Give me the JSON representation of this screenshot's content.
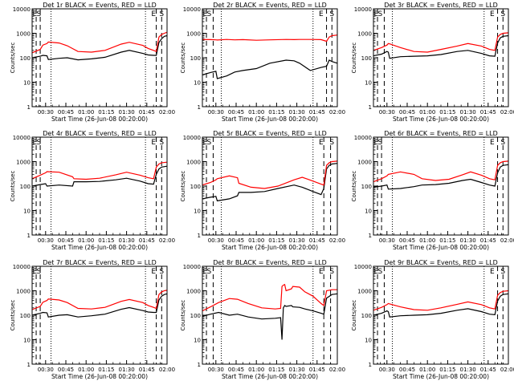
{
  "page": {
    "background": "#ffffff",
    "axis_color": "#000000"
  },
  "common": {
    "ylabel": "Counts/sec",
    "xlabel": "Start Time (26-Jun-08 00:20:00)",
    "xtick_labels": [
      "00:30",
      "00:45",
      "01:00",
      "01:15",
      "01:30",
      "01:45",
      "02:00"
    ],
    "ytick_labels": [
      "1",
      "10",
      "100",
      "1000",
      "10000"
    ],
    "events_color": "#000000",
    "lld_color": "#ff0000"
  },
  "chart_data": [
    {
      "type": "line",
      "title": "Det 1r BLACK = Events, RED = LLD",
      "xlabel": "Start Time (26-Jun-08 00:20:00)",
      "ylabel": "Counts/sec",
      "x_unit": "minutes after 00:20:00",
      "xlim": [
        0,
        100
      ],
      "ylim": [
        1,
        10000
      ],
      "yscale": "log",
      "grid": false,
      "x": [
        0,
        6,
        8,
        11,
        12,
        20,
        26,
        34,
        44,
        54,
        66,
        72,
        82,
        86,
        90,
        92,
        94,
        96,
        98,
        100
      ],
      "series": [
        {
          "label": "Events",
          "color": "#000000",
          "values": [
            100,
            115,
            125,
            120,
            85,
            95,
            100,
            82,
            90,
            105,
            170,
            200,
            150,
            130,
            125,
            125,
            420,
            600,
            750,
            800
          ]
        },
        {
          "label": "LLD",
          "color": "#ff0000",
          "values": [
            160,
            220,
            330,
            380,
            440,
            400,
            310,
            180,
            170,
            200,
            360,
            430,
            320,
            240,
            200,
            180,
            700,
            900,
            1000,
            1100
          ]
        }
      ],
      "dashed_lines_x": [
        3,
        6,
        92,
        96
      ],
      "dotted_lines_x": [
        14,
        84
      ],
      "corner_labels": [
        {
          "text": "E",
          "x": 2
        },
        {
          "text": "S",
          "x": 5
        },
        {
          "text": "E",
          "x": 90
        },
        {
          "text": "S",
          "x": 96
        }
      ]
    },
    {
      "type": "line",
      "title": "Det 2r BLACK = Events, RED = LLD",
      "xlabel": "Start Time (26-Jun-08 00:20:00)",
      "ylabel": "Counts/sec",
      "x_unit": "minutes after 00:20:00",
      "xlim": [
        0,
        100
      ],
      "ylim": [
        1,
        10000
      ],
      "yscale": "log",
      "grid": false,
      "x": [
        0,
        6,
        10,
        11,
        18,
        24,
        30,
        40,
        50,
        62,
        68,
        72,
        80,
        88,
        92,
        94,
        96,
        100
      ],
      "series": [
        {
          "label": "Events",
          "color": "#000000",
          "values": [
            20,
            25,
            28,
            14,
            18,
            26,
            30,
            36,
            60,
            80,
            75,
            60,
            30,
            40,
            45,
            80,
            70,
            60
          ]
        },
        {
          "label": "LLD",
          "color": "#ff0000",
          "values": [
            560,
            550,
            540,
            530,
            560,
            540,
            550,
            520,
            540,
            560,
            550,
            560,
            560,
            550,
            470,
            700,
            800,
            850
          ]
        }
      ],
      "dashed_lines_x": [
        3,
        8,
        92,
        96
      ],
      "dotted_lines_x": [
        14,
        82
      ],
      "corner_labels": [
        {
          "text": "E",
          "x": 2
        },
        {
          "text": "S",
          "x": 5
        },
        {
          "text": "E",
          "x": 88
        },
        {
          "text": "S",
          "x": 96
        }
      ]
    },
    {
      "type": "line",
      "title": "Det 3r BLACK = Events, RED = LLD",
      "xlabel": "Start Time (26-Jun-08 00:20:00)",
      "ylabel": "Counts/sec",
      "x_unit": "minutes after 00:20:00",
      "xlim": [
        0,
        100
      ],
      "ylim": [
        1,
        10000
      ],
      "yscale": "log",
      "grid": false,
      "x": [
        0,
        6,
        10,
        11,
        12,
        20,
        30,
        40,
        50,
        62,
        70,
        80,
        86,
        90,
        92,
        94,
        96,
        100
      ],
      "series": [
        {
          "label": "Events",
          "color": "#000000",
          "values": [
            120,
            140,
            180,
            170,
            95,
            110,
            115,
            120,
            135,
            180,
            200,
            150,
            120,
            115,
            400,
            650,
            750,
            800
          ]
        },
        {
          "label": "LLD",
          "color": "#ff0000",
          "values": [
            200,
            260,
            330,
            380,
            370,
            260,
            180,
            170,
            220,
            300,
            380,
            300,
            220,
            200,
            700,
            900,
            1000,
            1050
          ]
        }
      ],
      "dashed_lines_x": [
        3,
        8,
        92,
        96
      ],
      "dotted_lines_x": [
        14,
        82
      ],
      "corner_labels": [
        {
          "text": "E",
          "x": 2
        },
        {
          "text": "S",
          "x": 5
        },
        {
          "text": "E",
          "x": 88
        },
        {
          "text": "S",
          "x": 96
        }
      ]
    },
    {
      "type": "line",
      "title": "Det 4r BLACK = Events, RED = LLD",
      "xlabel": "Start Time (26-Jun-08 00:20:00)",
      "ylabel": "Counts/sec",
      "x_unit": "minutes after 00:20:00",
      "xlim": [
        0,
        100
      ],
      "ylim": [
        1,
        10000
      ],
      "yscale": "log",
      "grid": false,
      "x": [
        0,
        6,
        10,
        11,
        20,
        30,
        31,
        40,
        50,
        62,
        70,
        80,
        86,
        90,
        92,
        94,
        96,
        100
      ],
      "series": [
        {
          "label": "Events",
          "color": "#000000",
          "values": [
            100,
            115,
            125,
            100,
            110,
            100,
            150,
            150,
            155,
            180,
            210,
            160,
            125,
            120,
            300,
            500,
            600,
            650
          ]
        },
        {
          "label": "LLD",
          "color": "#ff0000",
          "values": [
            200,
            280,
            350,
            390,
            370,
            240,
            200,
            190,
            210,
            290,
            370,
            280,
            220,
            200,
            600,
            800,
            900,
            950
          ]
        }
      ],
      "dashed_lines_x": [
        3,
        6,
        92,
        96
      ],
      "dotted_lines_x": [
        14,
        84
      ],
      "corner_labels": [
        {
          "text": "E",
          "x": 2
        },
        {
          "text": "S",
          "x": 5
        },
        {
          "text": "E",
          "x": 90
        },
        {
          "text": "S",
          "x": 96
        }
      ]
    },
    {
      "type": "line",
      "title": "Det 5r BLACK = Events, RED = LLD",
      "xlabel": "Start Time (26-Jun-08 00:20:00)",
      "ylabel": "Counts/sec",
      "x_unit": "minutes after 00:20:00",
      "xlim": [
        0,
        100
      ],
      "ylim": [
        1,
        10000
      ],
      "yscale": "log",
      "grid": false,
      "x": [
        0,
        6,
        10,
        11,
        20,
        26,
        27,
        36,
        46,
        56,
        68,
        74,
        82,
        88,
        90,
        92,
        94,
        96,
        100
      ],
      "series": [
        {
          "label": "Events",
          "color": "#000000",
          "values": [
            30,
            35,
            38,
            25,
            30,
            40,
            55,
            55,
            60,
            80,
            110,
            90,
            60,
            45,
            80,
            500,
            700,
            800,
            850
          ]
        },
        {
          "label": "LLD",
          "color": "#ff0000",
          "values": [
            110,
            140,
            180,
            200,
            260,
            220,
            130,
            90,
            80,
            100,
            180,
            230,
            160,
            120,
            110,
            700,
            900,
            1000,
            1050
          ]
        }
      ],
      "dashed_lines_x": [
        3,
        8,
        90,
        95
      ],
      "dotted_lines_x": [
        14,
        82
      ],
      "corner_labels": [
        {
          "text": "E",
          "x": 2
        },
        {
          "text": "S",
          "x": 5
        },
        {
          "text": "E",
          "x": 88
        },
        {
          "text": "S",
          "x": 96
        }
      ]
    },
    {
      "type": "line",
      "title": "Det 6r BLACK = Events, RED = LLD",
      "xlabel": "Start Time (26-Jun-08 00:20:00)",
      "ylabel": "Counts/sec",
      "x_unit": "minutes after 00:20:00",
      "xlim": [
        0,
        100
      ],
      "ylim": [
        1,
        10000
      ],
      "yscale": "log",
      "grid": false,
      "x": [
        0,
        6,
        10,
        11,
        20,
        30,
        36,
        46,
        56,
        66,
        72,
        80,
        86,
        90,
        92,
        94,
        96,
        100
      ],
      "series": [
        {
          "label": "Events",
          "color": "#000000",
          "values": [
            90,
            100,
            110,
            75,
            80,
            95,
            110,
            115,
            130,
            170,
            190,
            140,
            110,
            100,
            350,
            600,
            700,
            750
          ]
        },
        {
          "label": "LLD",
          "color": "#ff0000",
          "values": [
            150,
            200,
            260,
            300,
            380,
            300,
            200,
            170,
            190,
            290,
            380,
            280,
            200,
            180,
            700,
            900,
            1000,
            1050
          ]
        }
      ],
      "dashed_lines_x": [
        3,
        6,
        92,
        96
      ],
      "dotted_lines_x": [
        14,
        82
      ],
      "corner_labels": [
        {
          "text": "E",
          "x": 2
        },
        {
          "text": "S",
          "x": 5
        },
        {
          "text": "E",
          "x": 88
        },
        {
          "text": "S",
          "x": 96
        }
      ]
    },
    {
      "type": "line",
      "title": "Det 7r BLACK = Events, RED = LLD",
      "xlabel": "Start Time (26-Jun-08 00:20:00)",
      "ylabel": "Counts/sec",
      "x_unit": "minutes after 00:20:00",
      "xlim": [
        0,
        100
      ],
      "ylim": [
        1,
        10000
      ],
      "yscale": "log",
      "grid": false,
      "x": [
        0,
        6,
        8,
        11,
        12,
        20,
        26,
        34,
        44,
        54,
        66,
        72,
        82,
        86,
        90,
        92,
        94,
        96,
        98,
        100
      ],
      "series": [
        {
          "label": "Events",
          "color": "#000000",
          "values": [
            100,
            120,
            130,
            125,
            85,
            100,
            105,
            85,
            95,
            110,
            175,
            205,
            155,
            135,
            130,
            130,
            420,
            600,
            700,
            750
          ]
        },
        {
          "label": "LLD",
          "color": "#ff0000",
          "values": [
            170,
            230,
            340,
            400,
            460,
            420,
            330,
            190,
            180,
            210,
            370,
            440,
            330,
            250,
            210,
            190,
            700,
            900,
            1000,
            1050
          ]
        }
      ],
      "dashed_lines_x": [
        3,
        6,
        92,
        96
      ],
      "dotted_lines_x": [
        14,
        84
      ],
      "corner_labels": [
        {
          "text": "E",
          "x": 2
        },
        {
          "text": "S",
          "x": 5
        },
        {
          "text": "E",
          "x": 90
        },
        {
          "text": "S",
          "x": 96
        }
      ]
    },
    {
      "type": "line",
      "title": "Det 8r BLACK = Events, RED = LLD",
      "xlabel": "Start Time (26-Jun-08 00:20:00)",
      "ylabel": "Counts/sec",
      "x_unit": "minutes after 00:20:00",
      "xlim": [
        0,
        100
      ],
      "ylim": [
        1,
        10000
      ],
      "yscale": "log",
      "grid": false,
      "x": [
        0,
        6,
        12,
        20,
        26,
        34,
        44,
        54,
        58,
        59,
        60,
        61,
        62,
        66,
        67,
        72,
        76,
        82,
        88,
        90,
        92,
        96,
        100
      ],
      "series": [
        {
          "label": "Events",
          "color": "#000000",
          "values": [
            90,
            110,
            130,
            100,
            110,
            85,
            70,
            75,
            80,
            10,
            200,
            250,
            230,
            250,
            220,
            210,
            180,
            150,
            120,
            110,
            500,
            700,
            750
          ]
        },
        {
          "label": "LLD",
          "color": "#ff0000",
          "values": [
            150,
            220,
            330,
            480,
            450,
            300,
            200,
            180,
            190,
            1500,
            1700,
            1800,
            1000,
            1200,
            1500,
            1400,
            900,
            600,
            300,
            250,
            1000,
            1100,
            1100
          ]
        }
      ],
      "dashed_lines_x": [
        3,
        8,
        90,
        95
      ],
      "dotted_lines_x": [
        14,
        82
      ],
      "corner_labels": [
        {
          "text": "E",
          "x": 2
        },
        {
          "text": "S",
          "x": 5
        },
        {
          "text": "E",
          "x": 88
        },
        {
          "text": "S",
          "x": 96
        }
      ]
    },
    {
      "type": "line",
      "title": "Det 9r BLACK = Events, RED = LLD",
      "xlabel": "Start Time (26-Jun-08 00:20:00)",
      "ylabel": "Counts/sec",
      "x_unit": "minutes after 00:20:00",
      "xlim": [
        0,
        100
      ],
      "ylim": [
        1,
        10000
      ],
      "yscale": "log",
      "grid": false,
      "x": [
        0,
        6,
        10,
        11,
        12,
        20,
        30,
        40,
        50,
        62,
        70,
        80,
        86,
        90,
        92,
        94,
        96,
        100
      ],
      "series": [
        {
          "label": "Events",
          "color": "#000000",
          "values": [
            100,
            120,
            150,
            140,
            85,
            95,
            100,
            105,
            120,
            160,
            185,
            140,
            110,
            105,
            380,
            600,
            700,
            750
          ]
        },
        {
          "label": "LLD",
          "color": "#ff0000",
          "values": [
            160,
            210,
            270,
            300,
            290,
            220,
            170,
            160,
            200,
            280,
            350,
            270,
            200,
            180,
            650,
            850,
            950,
            1000
          ]
        }
      ],
      "dashed_lines_x": [
        3,
        8,
        92,
        96
      ],
      "dotted_lines_x": [
        14,
        82
      ],
      "corner_labels": [
        {
          "text": "E",
          "x": 2
        },
        {
          "text": "S",
          "x": 5
        },
        {
          "text": "E",
          "x": 88
        },
        {
          "text": "S",
          "x": 96
        }
      ]
    }
  ]
}
